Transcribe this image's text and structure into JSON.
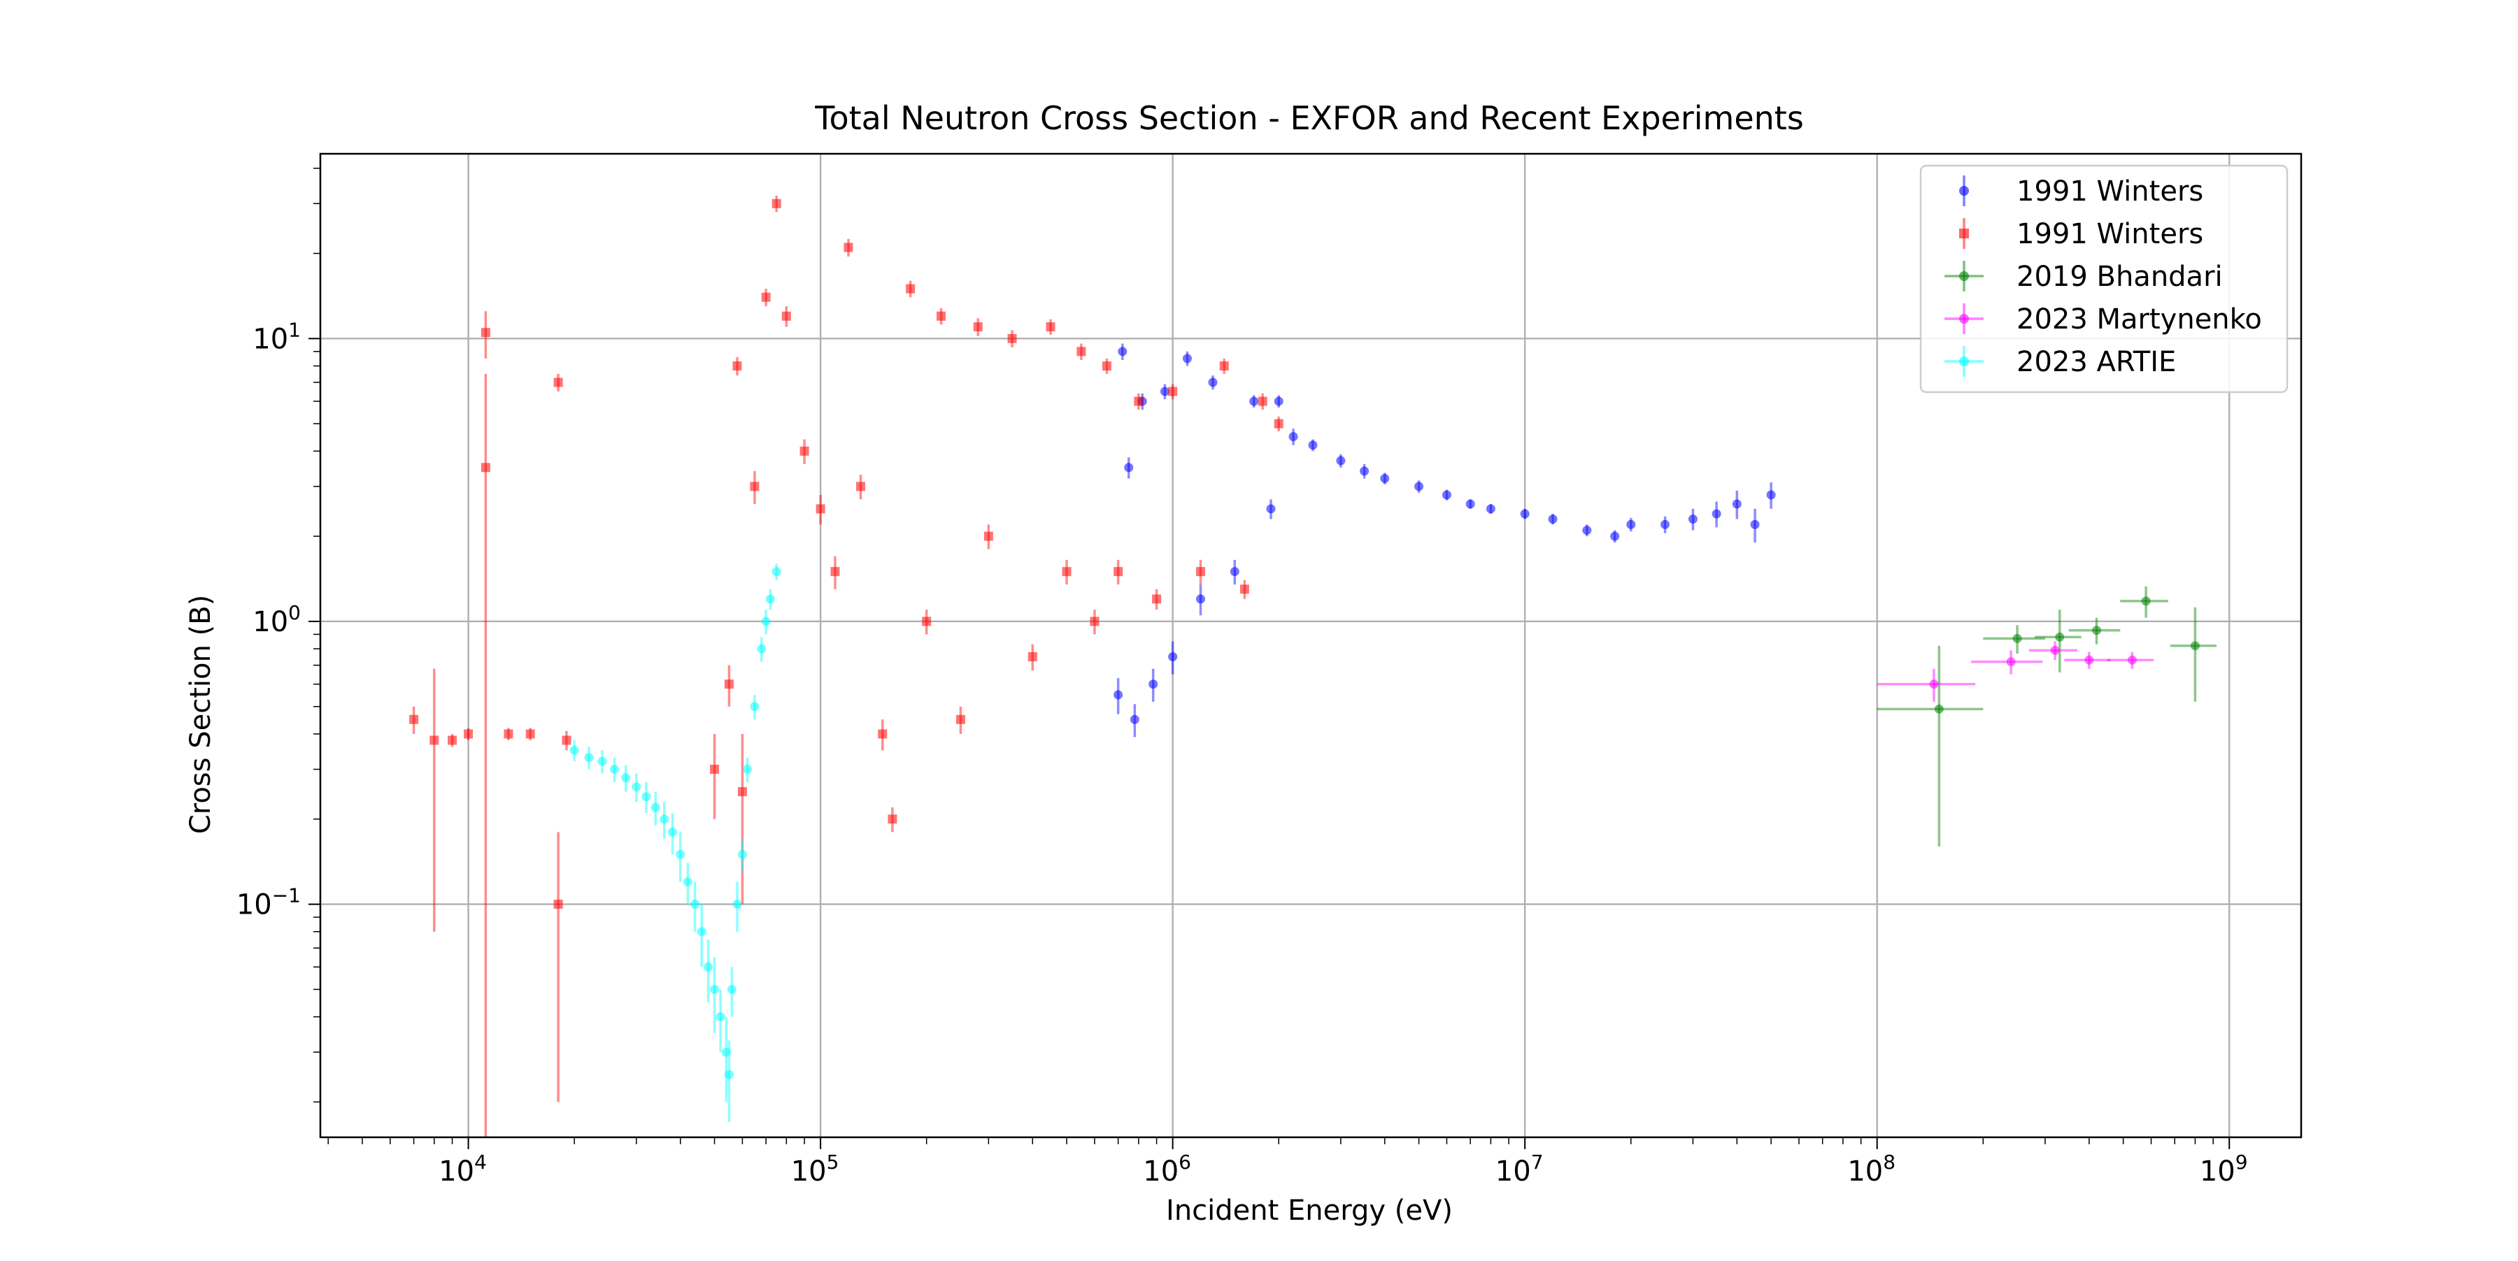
{
  "chart_data": {
    "type": "scatter",
    "title": "Total Neutron Cross Section - EXFOR and Recent Experiments",
    "xlabel": "Incident Energy (eV)",
    "ylabel": "Cross Section (B)",
    "xscale": "log",
    "yscale": "log",
    "xlim": [
      3800,
      1600000000
    ],
    "ylim": [
      0.015,
      45
    ],
    "x_ticks": [
      {
        "value": 10000,
        "base": "10",
        "exp": "4"
      },
      {
        "value": 100000,
        "base": "10",
        "exp": "5"
      },
      {
        "value": 1000000,
        "base": "10",
        "exp": "6"
      },
      {
        "value": 10000000,
        "base": "10",
        "exp": "7"
      },
      {
        "value": 100000000,
        "base": "10",
        "exp": "8"
      },
      {
        "value": 1000000000,
        "base": "10",
        "exp": "9"
      }
    ],
    "y_ticks": [
      {
        "value": 0.1,
        "base": "10",
        "exp": "−1"
      },
      {
        "value": 1,
        "base": "10",
        "exp": "0"
      },
      {
        "value": 10,
        "base": "10",
        "exp": "1"
      }
    ],
    "grid": true,
    "legend_position": "top-right",
    "series": [
      {
        "name": "1991 Winters",
        "marker": "circle",
        "color": "#0000ff",
        "x_range": [
          700000,
          50000000
        ],
        "y_range": [
          0.4,
          9.5
        ],
        "points": [
          [
            700000,
            0.55,
            0.08
          ],
          [
            720000,
            9.0,
            0.6
          ],
          [
            750000,
            3.5,
            0.3
          ],
          [
            780000,
            0.45,
            0.06
          ],
          [
            820000,
            6.0,
            0.4
          ],
          [
            880000,
            0.6,
            0.08
          ],
          [
            950000,
            6.5,
            0.4
          ],
          [
            1000000,
            0.75,
            0.1
          ],
          [
            1100000,
            8.5,
            0.5
          ],
          [
            1200000,
            1.2,
            0.15
          ],
          [
            1300000,
            7.0,
            0.4
          ],
          [
            1500000,
            1.5,
            0.15
          ],
          [
            1700000,
            6.0,
            0.3
          ],
          [
            1900000,
            2.5,
            0.2
          ],
          [
            2000000,
            6.0,
            0.3
          ],
          [
            2200000,
            4.5,
            0.3
          ],
          [
            2500000,
            4.2,
            0.2
          ],
          [
            3000000,
            3.7,
            0.2
          ],
          [
            3500000,
            3.4,
            0.2
          ],
          [
            4000000,
            3.2,
            0.15
          ],
          [
            5000000,
            3.0,
            0.15
          ],
          [
            6000000,
            2.8,
            0.12
          ],
          [
            7000000,
            2.6,
            0.1
          ],
          [
            8000000,
            2.5,
            0.1
          ],
          [
            10000000,
            2.4,
            0.1
          ],
          [
            12000000,
            2.3,
            0.1
          ],
          [
            15000000,
            2.1,
            0.1
          ],
          [
            18000000,
            2.0,
            0.1
          ],
          [
            20000000,
            2.2,
            0.12
          ],
          [
            25000000,
            2.2,
            0.15
          ],
          [
            30000000,
            2.3,
            0.2
          ],
          [
            35000000,
            2.4,
            0.25
          ],
          [
            40000000,
            2.6,
            0.3
          ],
          [
            45000000,
            2.2,
            0.3
          ],
          [
            50000000,
            2.8,
            0.3
          ]
        ]
      },
      {
        "name": "1991 Winters",
        "marker": "square",
        "color": "#ff0000",
        "x_range": [
          7000,
          2000000
        ],
        "y_range": [
          0.015,
          32
        ],
        "points": [
          [
            7000,
            0.45,
            0.05
          ],
          [
            8000,
            0.38,
            0.3
          ],
          [
            9000,
            0.38,
            0.02
          ],
          [
            10000,
            0.4,
            0.02
          ],
          [
            11200,
            3.5,
            4.0
          ],
          [
            11200,
            10.5,
            2.0
          ],
          [
            13000,
            0.4,
            0.02
          ],
          [
            15000,
            0.4,
            0.02
          ],
          [
            18000,
            7.0,
            0.5
          ],
          [
            18000,
            0.1,
            0.08
          ],
          [
            19000,
            0.38,
            0.03
          ],
          [
            50000,
            0.3,
            0.1
          ],
          [
            55000,
            0.6,
            0.1
          ],
          [
            58000,
            8.0,
            0.6
          ],
          [
            60000,
            0.25,
            0.15
          ],
          [
            65000,
            3.0,
            0.4
          ],
          [
            70000,
            14.0,
            1.0
          ],
          [
            75000,
            30.0,
            2.0
          ],
          [
            80000,
            12.0,
            1.0
          ],
          [
            90000,
            4.0,
            0.4
          ],
          [
            100000,
            2.5,
            0.3
          ],
          [
            110000,
            1.5,
            0.2
          ],
          [
            120000,
            21.0,
            1.5
          ],
          [
            130000,
            3.0,
            0.3
          ],
          [
            150000,
            0.4,
            0.05
          ],
          [
            160000,
            0.2,
            0.02
          ],
          [
            180000,
            15.0,
            1.0
          ],
          [
            200000,
            1.0,
            0.1
          ],
          [
            220000,
            12.0,
            0.8
          ],
          [
            250000,
            0.45,
            0.05
          ],
          [
            280000,
            11.0,
            0.8
          ],
          [
            300000,
            2.0,
            0.2
          ],
          [
            350000,
            10.0,
            0.7
          ],
          [
            400000,
            0.75,
            0.08
          ],
          [
            450000,
            11.0,
            0.7
          ],
          [
            500000,
            1.5,
            0.15
          ],
          [
            550000,
            9.0,
            0.6
          ],
          [
            600000,
            1.0,
            0.1
          ],
          [
            650000,
            8.0,
            0.5
          ],
          [
            700000,
            1.5,
            0.15
          ],
          [
            800000,
            6.0,
            0.4
          ],
          [
            900000,
            1.2,
            0.1
          ],
          [
            1000000,
            6.5,
            0.4
          ],
          [
            1200000,
            1.5,
            0.15
          ],
          [
            1400000,
            8.0,
            0.5
          ],
          [
            1600000,
            1.3,
            0.1
          ],
          [
            1800000,
            6.0,
            0.4
          ],
          [
            2000000,
            5.0,
            0.3
          ]
        ]
      },
      {
        "name": "2019 Bhandari",
        "marker": "circle",
        "color": "#008000",
        "points": [
          [
            150000000,
            0.49,
            0.33,
            50000000
          ],
          [
            250000000,
            0.87,
            0.1,
            50000000
          ],
          [
            330000000,
            0.88,
            0.22,
            50000000
          ],
          [
            420000000,
            0.93,
            0.1,
            70000000
          ],
          [
            580000000,
            1.18,
            0.15,
            90000000
          ],
          [
            800000000,
            0.82,
            0.3,
            120000000
          ]
        ]
      },
      {
        "name": "2023 Martynenko",
        "marker": "circle",
        "color": "#ff00ff",
        "points": [
          [
            145000000,
            0.6,
            0.08,
            45000000
          ],
          [
            240000000,
            0.72,
            0.07,
            55000000
          ],
          [
            320000000,
            0.79,
            0.06,
            50000000
          ],
          [
            400000000,
            0.73,
            0.05,
            60000000
          ],
          [
            530000000,
            0.73,
            0.05,
            80000000
          ]
        ]
      },
      {
        "name": "2023 ARTIE",
        "marker": "circle",
        "color": "#00ffff",
        "x_range": [
          20000,
          75000
        ],
        "y_range": [
          0.02,
          1.5
        ],
        "points": [
          [
            20000,
            0.35,
            0.03
          ],
          [
            22000,
            0.33,
            0.03
          ],
          [
            24000,
            0.32,
            0.03
          ],
          [
            26000,
            0.3,
            0.03
          ],
          [
            28000,
            0.28,
            0.03
          ],
          [
            30000,
            0.26,
            0.03
          ],
          [
            32000,
            0.24,
            0.03
          ],
          [
            34000,
            0.22,
            0.03
          ],
          [
            36000,
            0.2,
            0.03
          ],
          [
            38000,
            0.18,
            0.03
          ],
          [
            40000,
            0.15,
            0.03
          ],
          [
            42000,
            0.12,
            0.02
          ],
          [
            44000,
            0.1,
            0.02
          ],
          [
            46000,
            0.08,
            0.02
          ],
          [
            48000,
            0.06,
            0.015
          ],
          [
            50000,
            0.05,
            0.015
          ],
          [
            52000,
            0.04,
            0.01
          ],
          [
            54000,
            0.03,
            0.01
          ],
          [
            55000,
            0.025,
            0.008
          ],
          [
            56000,
            0.05,
            0.01
          ],
          [
            58000,
            0.1,
            0.02
          ],
          [
            60000,
            0.15,
            0.02
          ],
          [
            62000,
            0.3,
            0.03
          ],
          [
            65000,
            0.5,
            0.05
          ],
          [
            68000,
            0.8,
            0.08
          ],
          [
            70000,
            1.0,
            0.1
          ],
          [
            72000,
            1.2,
            0.1
          ],
          [
            75000,
            1.5,
            0.1
          ]
        ]
      }
    ]
  }
}
